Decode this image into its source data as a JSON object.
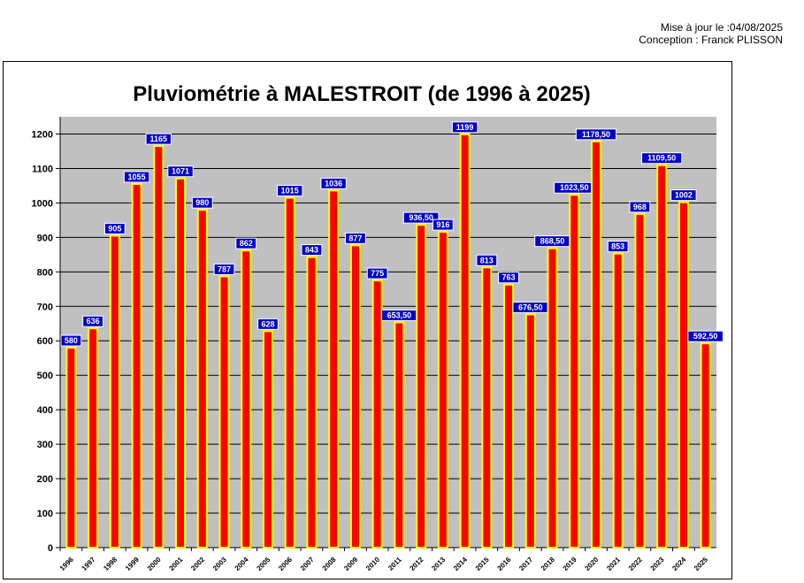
{
  "header": {
    "update_line": "Mise à jour le :04/08/2025",
    "credit_line": "Conception : Franck PLISSON"
  },
  "chart_data": {
    "type": "bar",
    "title": "Pluviométrie à MALESTROIT (de 1996 à 2025)",
    "xlabel": "",
    "ylabel": "",
    "ylim": [
      0,
      1250
    ],
    "yticks": [
      0,
      100,
      200,
      300,
      400,
      500,
      600,
      700,
      800,
      900,
      1000,
      1100,
      1200
    ],
    "grid": true,
    "legend": "none",
    "categories": [
      "1996",
      "1997",
      "1998",
      "1999",
      "2000",
      "2001",
      "2002",
      "2003",
      "2004",
      "2005",
      "2006",
      "2007",
      "2008",
      "2009",
      "2010",
      "2011",
      "2012",
      "2013",
      "2014",
      "2015",
      "2016",
      "2017",
      "2018",
      "2019",
      "2020",
      "2021",
      "2022",
      "2023",
      "2024",
      "2025"
    ],
    "values": [
      580,
      636,
      905,
      1055,
      1165,
      1071,
      980,
      787,
      862,
      628,
      1015,
      843,
      1036,
      877,
      775,
      653.5,
      936.5,
      916,
      1199,
      813,
      763,
      676.5,
      868.5,
      1023.5,
      1178.5,
      853,
      968,
      1109.5,
      1002,
      592.5
    ],
    "data_labels": [
      "580",
      "636",
      "905",
      "1055",
      "1165",
      "1071",
      "980",
      "787",
      "862",
      "628",
      "1015",
      "843",
      "1036",
      "877",
      "775",
      "653,50",
      "936,50",
      "916",
      "1199",
      "813",
      "763",
      "676,50",
      "868,50",
      "1023,50",
      "1178,50",
      "853",
      "968",
      "1109,50",
      "1002",
      "592,50"
    ],
    "colors": {
      "bar_fill": "#ff0000",
      "bar_border": "#ffff00",
      "plot_bg": "#c0c0c0",
      "label_bg": "#0000cc",
      "label_text": "#ffffff"
    }
  }
}
